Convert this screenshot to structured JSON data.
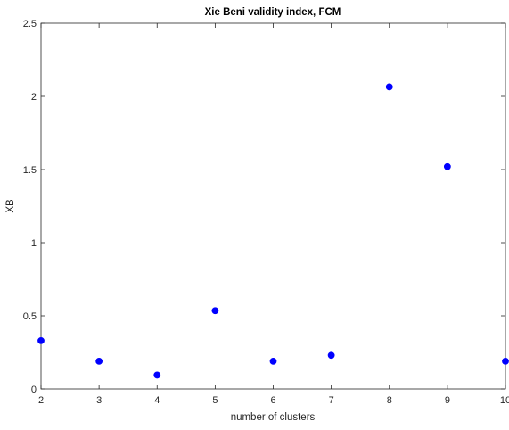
{
  "chart_data": {
    "type": "scatter",
    "title": "Xie Beni validity index, FCM",
    "xlabel": "number of clusters",
    "ylabel": "XB",
    "xlim": [
      2,
      10
    ],
    "ylim": [
      0,
      2.5
    ],
    "x_ticks": [
      2,
      3,
      4,
      5,
      6,
      7,
      8,
      9,
      10
    ],
    "y_ticks": [
      0,
      0.5,
      1,
      1.5,
      2,
      2.5
    ],
    "x_tick_labels": [
      "2",
      "3",
      "4",
      "5",
      "6",
      "7",
      "8",
      "9",
      "10"
    ],
    "y_tick_labels": [
      "0",
      "0.5",
      "1",
      "1.5",
      "2",
      "2.5"
    ],
    "grid": false,
    "legend": "none",
    "marker_color": "#0000ff",
    "axis_color": "#262626",
    "x": [
      2,
      3,
      4,
      5,
      6,
      7,
      8,
      9,
      10
    ],
    "y": [
      0.33,
      0.19,
      0.095,
      0.535,
      0.19,
      0.23,
      2.065,
      1.52,
      0.19
    ]
  }
}
